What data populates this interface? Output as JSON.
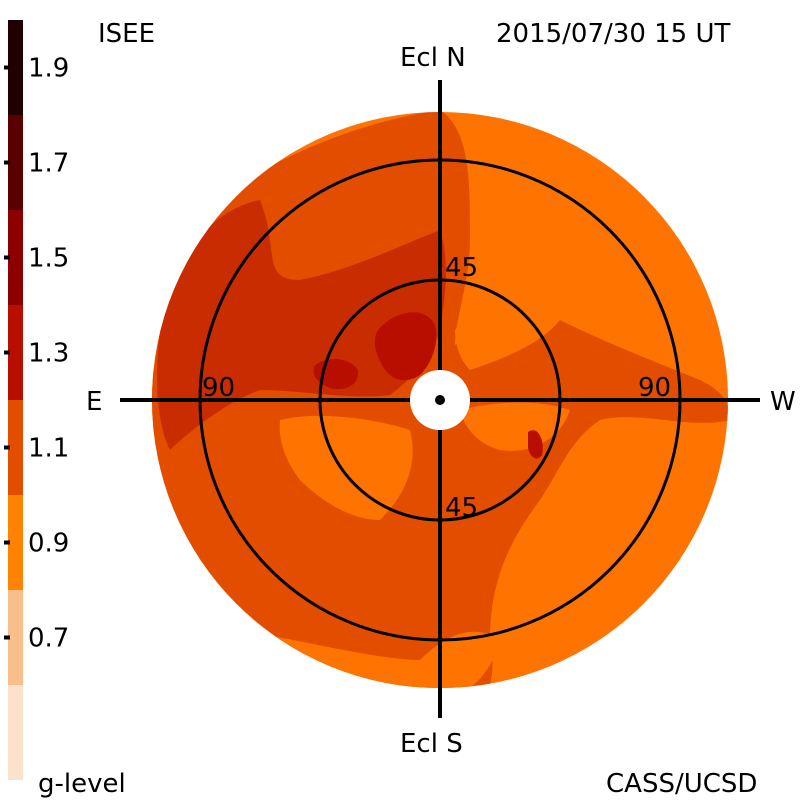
{
  "header": {
    "source": "ISEE",
    "timestamp": "2015/07/30 15 UT",
    "credit": "CASS/UCSD"
  },
  "colorbar": {
    "title": "g-level",
    "tick_labels": [
      "1.9",
      "1.7",
      "1.5",
      "1.3",
      "1.1",
      "0.9",
      "0.7"
    ],
    "tick_values": [
      1.9,
      1.7,
      1.5,
      1.3,
      1.1,
      0.9,
      0.7
    ],
    "bands": [
      {
        "lo": 1.8,
        "hi": 2.0,
        "color": "#200000"
      },
      {
        "lo": 1.6,
        "hi": 1.8,
        "color": "#5a0000"
      },
      {
        "lo": 1.4,
        "hi": 1.6,
        "color": "#8c0000"
      },
      {
        "lo": 1.2,
        "hi": 1.4,
        "color": "#b80e00"
      },
      {
        "lo": 1.0,
        "hi": 1.2,
        "color": "#e24d00"
      },
      {
        "lo": 0.8,
        "hi": 1.0,
        "color": "#ff8200"
      },
      {
        "lo": 0.6,
        "hi": 0.8,
        "color": "#f9bf8a"
      },
      {
        "lo": 0.4,
        "hi": 0.6,
        "color": "#fde2cb"
      }
    ]
  },
  "skymap": {
    "labels": {
      "north": "Ecl N",
      "south": "Ecl S",
      "east": "E",
      "west": "W",
      "ring_45_top": "45",
      "ring_45_bottom": "45",
      "ring_90_left": "90",
      "ring_90_right": "90"
    },
    "colors": {
      "background_level": "#ff7300",
      "level_1_0": "#e24d00",
      "level_1_2": "#c92c00",
      "level_1_4": "#b80e00",
      "level_0_9": "#ff8200",
      "sun_occulter": "#ffffff"
    }
  }
}
